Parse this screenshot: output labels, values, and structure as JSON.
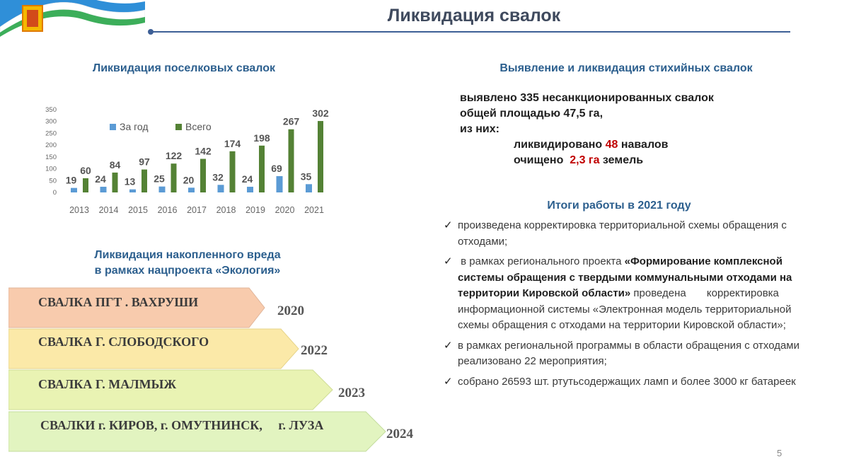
{
  "page": {
    "title": "Ликвидация свалок",
    "page_number": "5"
  },
  "colors": {
    "title": "#3f4a5e",
    "heading": "#2c5f8e",
    "bar_year": "#5b9bd5",
    "bar_total": "#548235",
    "accent_red": "#c00000"
  },
  "left": {
    "chart_heading": "Ликвидация поселковых свалок",
    "accum_heading_line1": "Ликвидация накопленного вреда",
    "accum_heading_line2": "в рамках нацпроекта «Экология»",
    "arrows": [
      {
        "label": "СВАЛКА ПГТ . ВАХРУШИ",
        "year": "2020",
        "color": "#f8cbad"
      },
      {
        "label": "СВАЛКА Г. СЛОБОДСКОГО",
        "year": "2022",
        "color": "#fbe9a8"
      },
      {
        "label": "СВАЛКА Г. МАЛМЫЖ",
        "year": "2023",
        "color": "#e9f3b3"
      },
      {
        "label": "СВАЛКИ г. КИРОВ, г. ОМУТНИНСК,     г. ЛУЗА",
        "year": "2024",
        "color": "#e2f4c0"
      }
    ]
  },
  "chart_data": {
    "type": "bar",
    "title": "Ликвидация поселковых свалок",
    "categories": [
      "2013",
      "2014",
      "2015",
      "2016",
      "2017",
      "2018",
      "2019",
      "2020",
      "2021"
    ],
    "series": [
      {
        "name": "За год",
        "values": [
          19,
          24,
          13,
          25,
          20,
          32,
          24,
          69,
          35
        ]
      },
      {
        "name": "Всего",
        "values": [
          60,
          84,
          97,
          122,
          142,
          174,
          198,
          267,
          302
        ]
      }
    ],
    "ylim": [
      0,
      350
    ],
    "yticks": [
      0,
      50,
      100,
      150,
      200,
      250,
      300,
      350
    ],
    "legend": "top",
    "grid": false
  },
  "right": {
    "detect_heading": "Выявление и ликвидация стихийных свалок",
    "detect_line1": "выявлено 335 несанкционированных свалок",
    "detect_line2": "общей площадью 47,5 га,",
    "detect_line3": "из них:",
    "liq_pre": "ликвидировано ",
    "liq_num": "48",
    "liq_post": " навалов",
    "clean_pre": "очищено  ",
    "clean_num": "2,3 га",
    "clean_post": " земель",
    "itogi_heading": "Итоги работы в 2021 году",
    "item1": "произведена корректировка территориальной схемы обращения с отходами;",
    "item2_pre": " в рамках регионального проекта ",
    "item2_bold": "«Формирование комплексной системы обращения с твердыми коммунальными отходами на территории Кировской области»",
    "item2_post": " проведена       корректировка информационной системы «Электронная модель территориальной схемы обращения с отходами на территории Кировской области»;",
    "item3": " в рамках региональной программы в области обращения с отходами реализовано 22 мероприятия;",
    "item4": "собрано 26593 шт. ртутьсодержащих ламп и более 3000 кг батареек"
  }
}
